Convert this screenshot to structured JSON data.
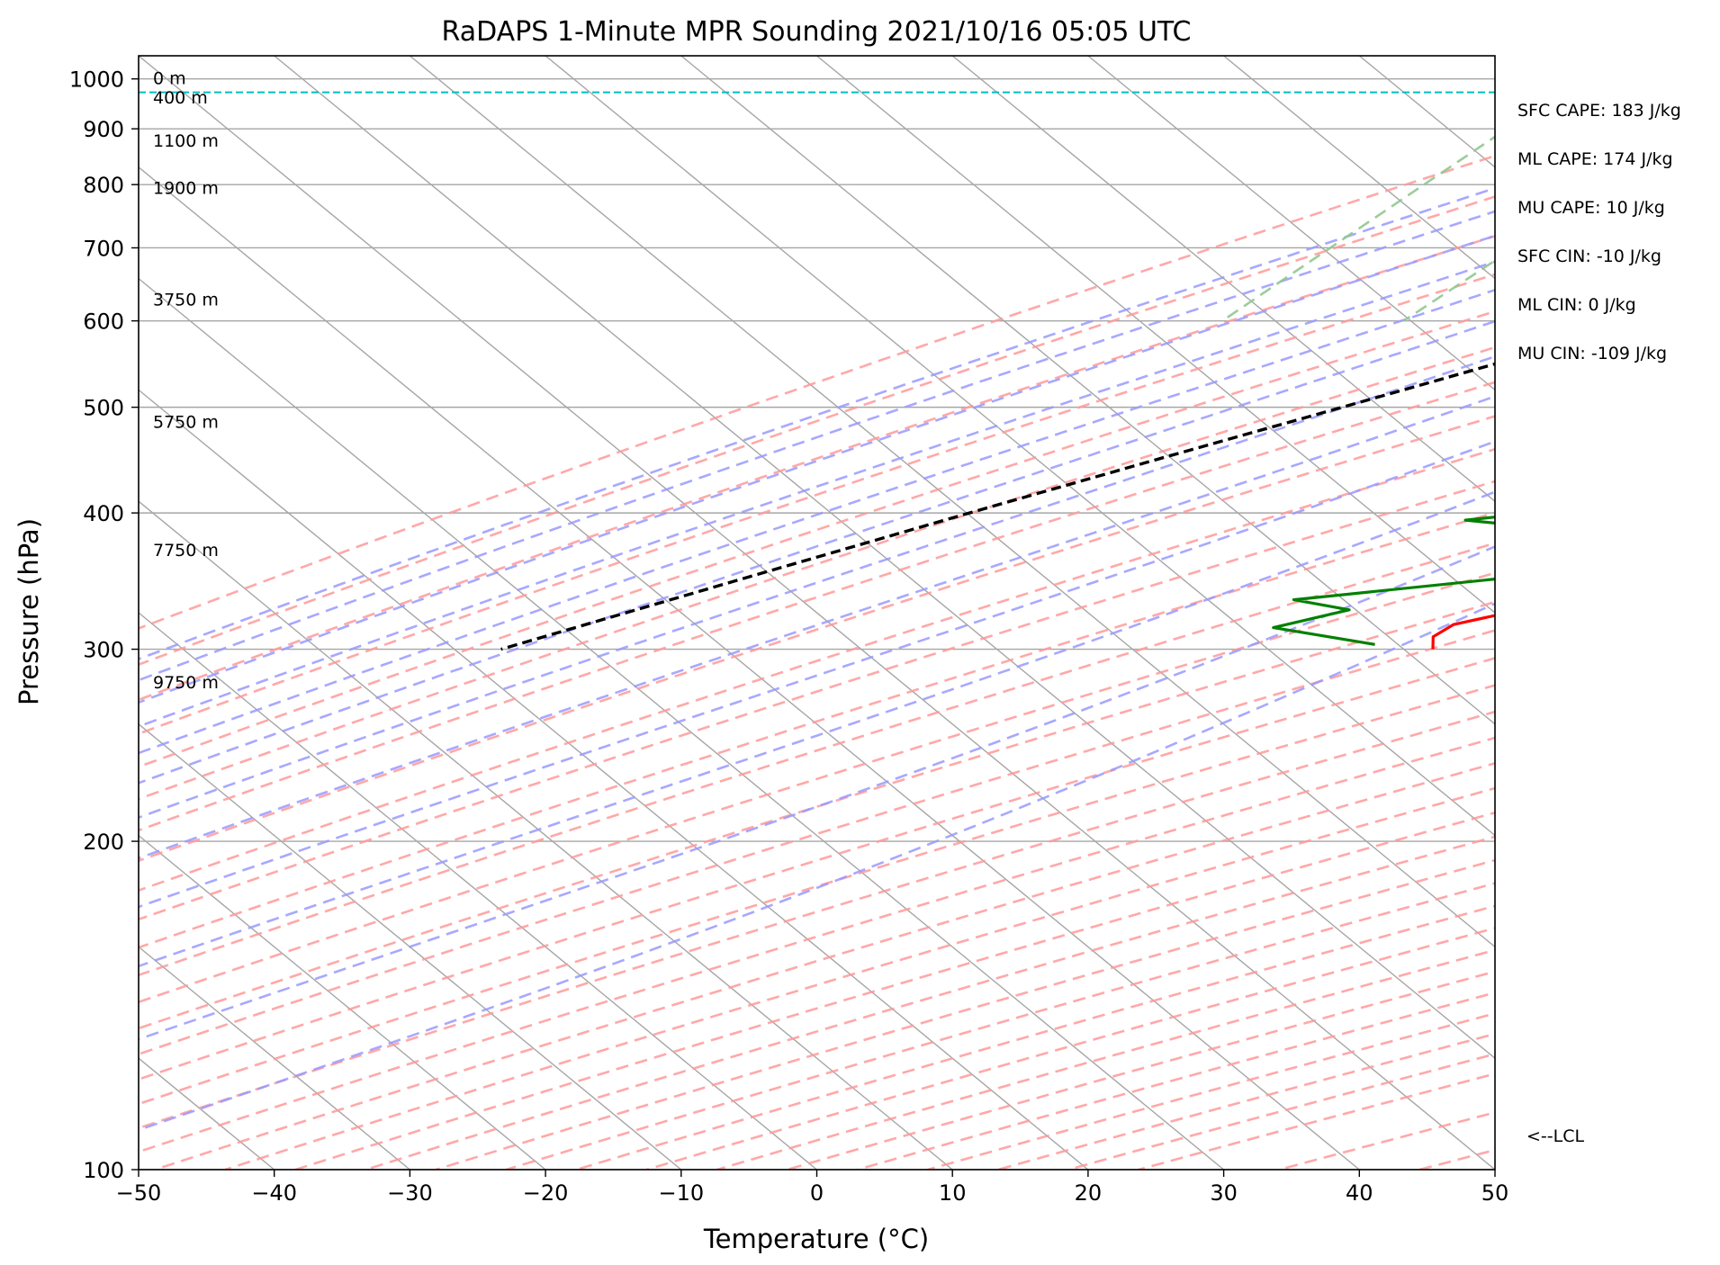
{
  "chart_data": {
    "type": "line",
    "subtype": "skew-t log-p sounding",
    "title": "RaDAPS 1-Minute MPR Sounding 2021/10/16 05:05 UTC",
    "xlabel": "Temperature (°C)",
    "ylabel": "Pressure (hPa)",
    "xlim": [
      -50,
      50
    ],
    "ylim": [
      1050,
      100
    ],
    "y_scale": "log",
    "x_ticks": [
      -50,
      -40,
      -30,
      -20,
      -10,
      0,
      10,
      20,
      30,
      40,
      50
    ],
    "x_tick_labels": [
      "−50",
      "−40",
      "−30",
      "−20",
      "−10",
      "0",
      "10",
      "20",
      "30",
      "40",
      "50"
    ],
    "y_ticks": [
      100,
      200,
      300,
      400,
      500,
      600,
      700,
      800,
      900,
      1000
    ],
    "y_tick_labels": [
      "100",
      "200",
      "300",
      "400",
      "500",
      "600",
      "700",
      "800",
      "900",
      "1000"
    ],
    "grid": true,
    "height_labels": [
      {
        "text": "9750 m",
        "p": 280
      },
      {
        "text": "7750 m",
        "p": 370
      },
      {
        "text": "5750 m",
        "p": 485
      },
      {
        "text": "3750 m",
        "p": 628
      },
      {
        "text": "1900 m",
        "p": 795
      },
      {
        "text": "1100 m",
        "p": 878
      },
      {
        "text": "400 m",
        "p": 962
      },
      {
        "text": "0 m",
        "p": 1002
      }
    ],
    "indices": [
      "SFC CAPE: 183 J/kg",
      "ML CAPE: 174 J/kg",
      "MU CAPE: 10 J/kg",
      "SFC CIN: -10 J/kg",
      "ML CIN: 0 J/kg",
      "MU CIN: -109 J/kg"
    ],
    "lcl": {
      "label": "<--LCL",
      "p": 972
    },
    "series": [
      {
        "role": "temperature",
        "color": "#ff0000",
        "points": [
          [
            1000,
            22.0
          ],
          [
            990,
            21.5
          ],
          [
            980,
            21.0
          ],
          [
            970,
            20.8
          ],
          [
            960,
            20.0
          ],
          [
            950,
            19.5
          ],
          [
            940,
            19.0
          ],
          [
            920,
            18.5
          ],
          [
            900,
            18.0
          ],
          [
            880,
            17.5
          ],
          [
            860,
            16.5
          ],
          [
            840,
            16.5
          ],
          [
            820,
            16.0
          ],
          [
            810,
            15.5
          ],
          [
            790,
            15.5
          ],
          [
            775,
            15.5
          ],
          [
            760,
            15.0
          ],
          [
            745,
            15.2
          ],
          [
            738,
            16.0
          ],
          [
            730,
            17.0
          ],
          [
            720,
            17.5
          ],
          [
            711,
            18.0
          ],
          [
            700,
            18.5
          ],
          [
            693,
            19.5
          ],
          [
            685,
            19.8
          ],
          [
            672,
            20.0
          ],
          [
            660,
            20.8
          ],
          [
            650,
            21.2
          ],
          [
            640,
            20.5
          ],
          [
            630,
            21.3
          ],
          [
            620,
            21.2
          ],
          [
            600,
            22.5
          ],
          [
            590,
            21.5
          ],
          [
            580,
            20.8
          ],
          [
            570,
            20.8
          ],
          [
            560,
            21.0
          ],
          [
            549,
            21.5
          ],
          [
            537,
            20.5
          ],
          [
            525,
            19.2
          ],
          [
            515,
            16.0
          ],
          [
            505,
            17.0
          ],
          [
            495,
            16.5
          ],
          [
            485,
            16.0
          ],
          [
            474,
            15.5
          ],
          [
            460,
            14.4
          ],
          [
            450,
            13.2
          ],
          [
            440,
            11.5
          ],
          [
            430,
            9.9
          ],
          [
            420,
            8.3
          ],
          [
            410,
            6.8
          ],
          [
            398,
            5.2
          ],
          [
            388,
            4.3
          ],
          [
            380,
            3.5
          ],
          [
            372,
            2.8
          ],
          [
            362,
            4.0
          ],
          [
            352,
            3.3
          ],
          [
            343,
            2.7
          ],
          [
            333,
            3.1
          ],
          [
            325,
            1.3
          ],
          [
            316,
            -2.0
          ],
          [
            308,
            -2.4
          ],
          [
            300,
            -1.3
          ]
        ]
      },
      {
        "role": "dewpoint",
        "color": "#008000",
        "points": [
          [
            995,
            20.5
          ],
          [
            985,
            21.5
          ],
          [
            975,
            21.0
          ],
          [
            968,
            21.3
          ],
          [
            962,
            20.5
          ],
          [
            957,
            21.0
          ],
          [
            955,
            18.5
          ],
          [
            945,
            17.0
          ],
          [
            935,
            16.0
          ],
          [
            920,
            16.0
          ],
          [
            905,
            13.5
          ],
          [
            890,
            14.0
          ],
          [
            878,
            13.5
          ],
          [
            865,
            12.0
          ],
          [
            850,
            9.0
          ],
          [
            840,
            8.5
          ],
          [
            832,
            8.6
          ],
          [
            820,
            8.5
          ],
          [
            810,
            7.5
          ],
          [
            800,
            7.0
          ],
          [
            790,
            7.0
          ],
          [
            770,
            6.8
          ],
          [
            750,
            6.5
          ],
          [
            730,
            6.5
          ],
          [
            718,
            8.5
          ],
          [
            708,
            10.0
          ],
          [
            700,
            12.0
          ],
          [
            690,
            11.0
          ],
          [
            680,
            6.0
          ],
          [
            672,
            3.5
          ],
          [
            660,
            1.5
          ],
          [
            650,
            0.0
          ],
          [
            640,
            -1.0
          ],
          [
            630,
            -3.5
          ],
          [
            620,
            -1.5
          ],
          [
            600,
            3.5
          ],
          [
            590,
            -1.5
          ],
          [
            580,
            -0.5
          ],
          [
            570,
            0.3
          ],
          [
            560,
            -1.0
          ],
          [
            550,
            -3.0
          ],
          [
            540,
            -5.5
          ],
          [
            528,
            -7.8
          ],
          [
            518,
            -19.5
          ],
          [
            510,
            -14.5
          ],
          [
            500,
            -11.0
          ],
          [
            490,
            -5.0
          ],
          [
            480,
            4.0
          ],
          [
            471,
            2.5
          ],
          [
            460,
            2.5
          ],
          [
            450,
            3.0
          ],
          [
            440,
            0.0
          ],
          [
            430,
            -2.0
          ],
          [
            416,
            -1.0
          ],
          [
            400,
            -6.0
          ],
          [
            394,
            -10.5
          ],
          [
            384,
            -0.5
          ],
          [
            372,
            1.5
          ],
          [
            360,
            1.5
          ],
          [
            352,
            0.5
          ],
          [
            333,
            -16.0
          ],
          [
            326,
            -11.0
          ],
          [
            314,
            -15.0
          ],
          [
            303,
            -6.0
          ]
        ]
      },
      {
        "role": "parcel",
        "color": "#000000",
        "dashed": true,
        "points": [
          [
            995,
            22.0
          ],
          [
            980,
            21.0
          ],
          [
            972,
            20.4
          ],
          [
            950,
            18.1
          ],
          [
            900,
            14.5
          ],
          [
            850,
            10.5
          ],
          [
            800,
            6.2
          ],
          [
            750,
            1.5
          ],
          [
            700,
            -3.7
          ],
          [
            650,
            -9.1
          ],
          [
            600,
            -15.2
          ],
          [
            550,
            -22.0
          ],
          [
            500,
            -29.7
          ],
          [
            450,
            -38.3
          ],
          [
            400,
            -47.7
          ],
          [
            350,
            -58.1
          ],
          [
            300,
            -70.0
          ]
        ]
      }
    ],
    "background": {
      "skew": 1,
      "isotherm_step": 10,
      "dry_adiabat_thetas": [
        -30,
        -20,
        -10,
        0,
        10,
        20,
        30,
        40,
        50,
        60,
        70,
        80,
        90,
        100,
        110,
        120,
        130,
        140,
        150,
        160,
        170,
        180,
        190,
        200,
        210,
        220,
        230,
        240,
        250,
        260,
        270,
        280,
        290,
        300,
        320,
        340
      ],
      "moist_adiabat_start_temps": [
        -20,
        -15,
        -10,
        -5,
        0,
        5,
        10,
        15,
        20,
        25,
        30,
        35
      ],
      "mixing_ratios": [
        0.0001,
        0.0004,
        0.0008,
        0.0016,
        0.003,
        0.005,
        0.009,
        0.013,
        0.018,
        0.025
      ],
      "colors": {
        "isotherm": "#a6a6a6",
        "dry_adiabat": "#ff9999",
        "moist_adiabat": "#9999ff",
        "mixing_ratio": "#90c890",
        "grid": "#a6a6a6",
        "lcl_line": "#00bfbf"
      }
    }
  }
}
